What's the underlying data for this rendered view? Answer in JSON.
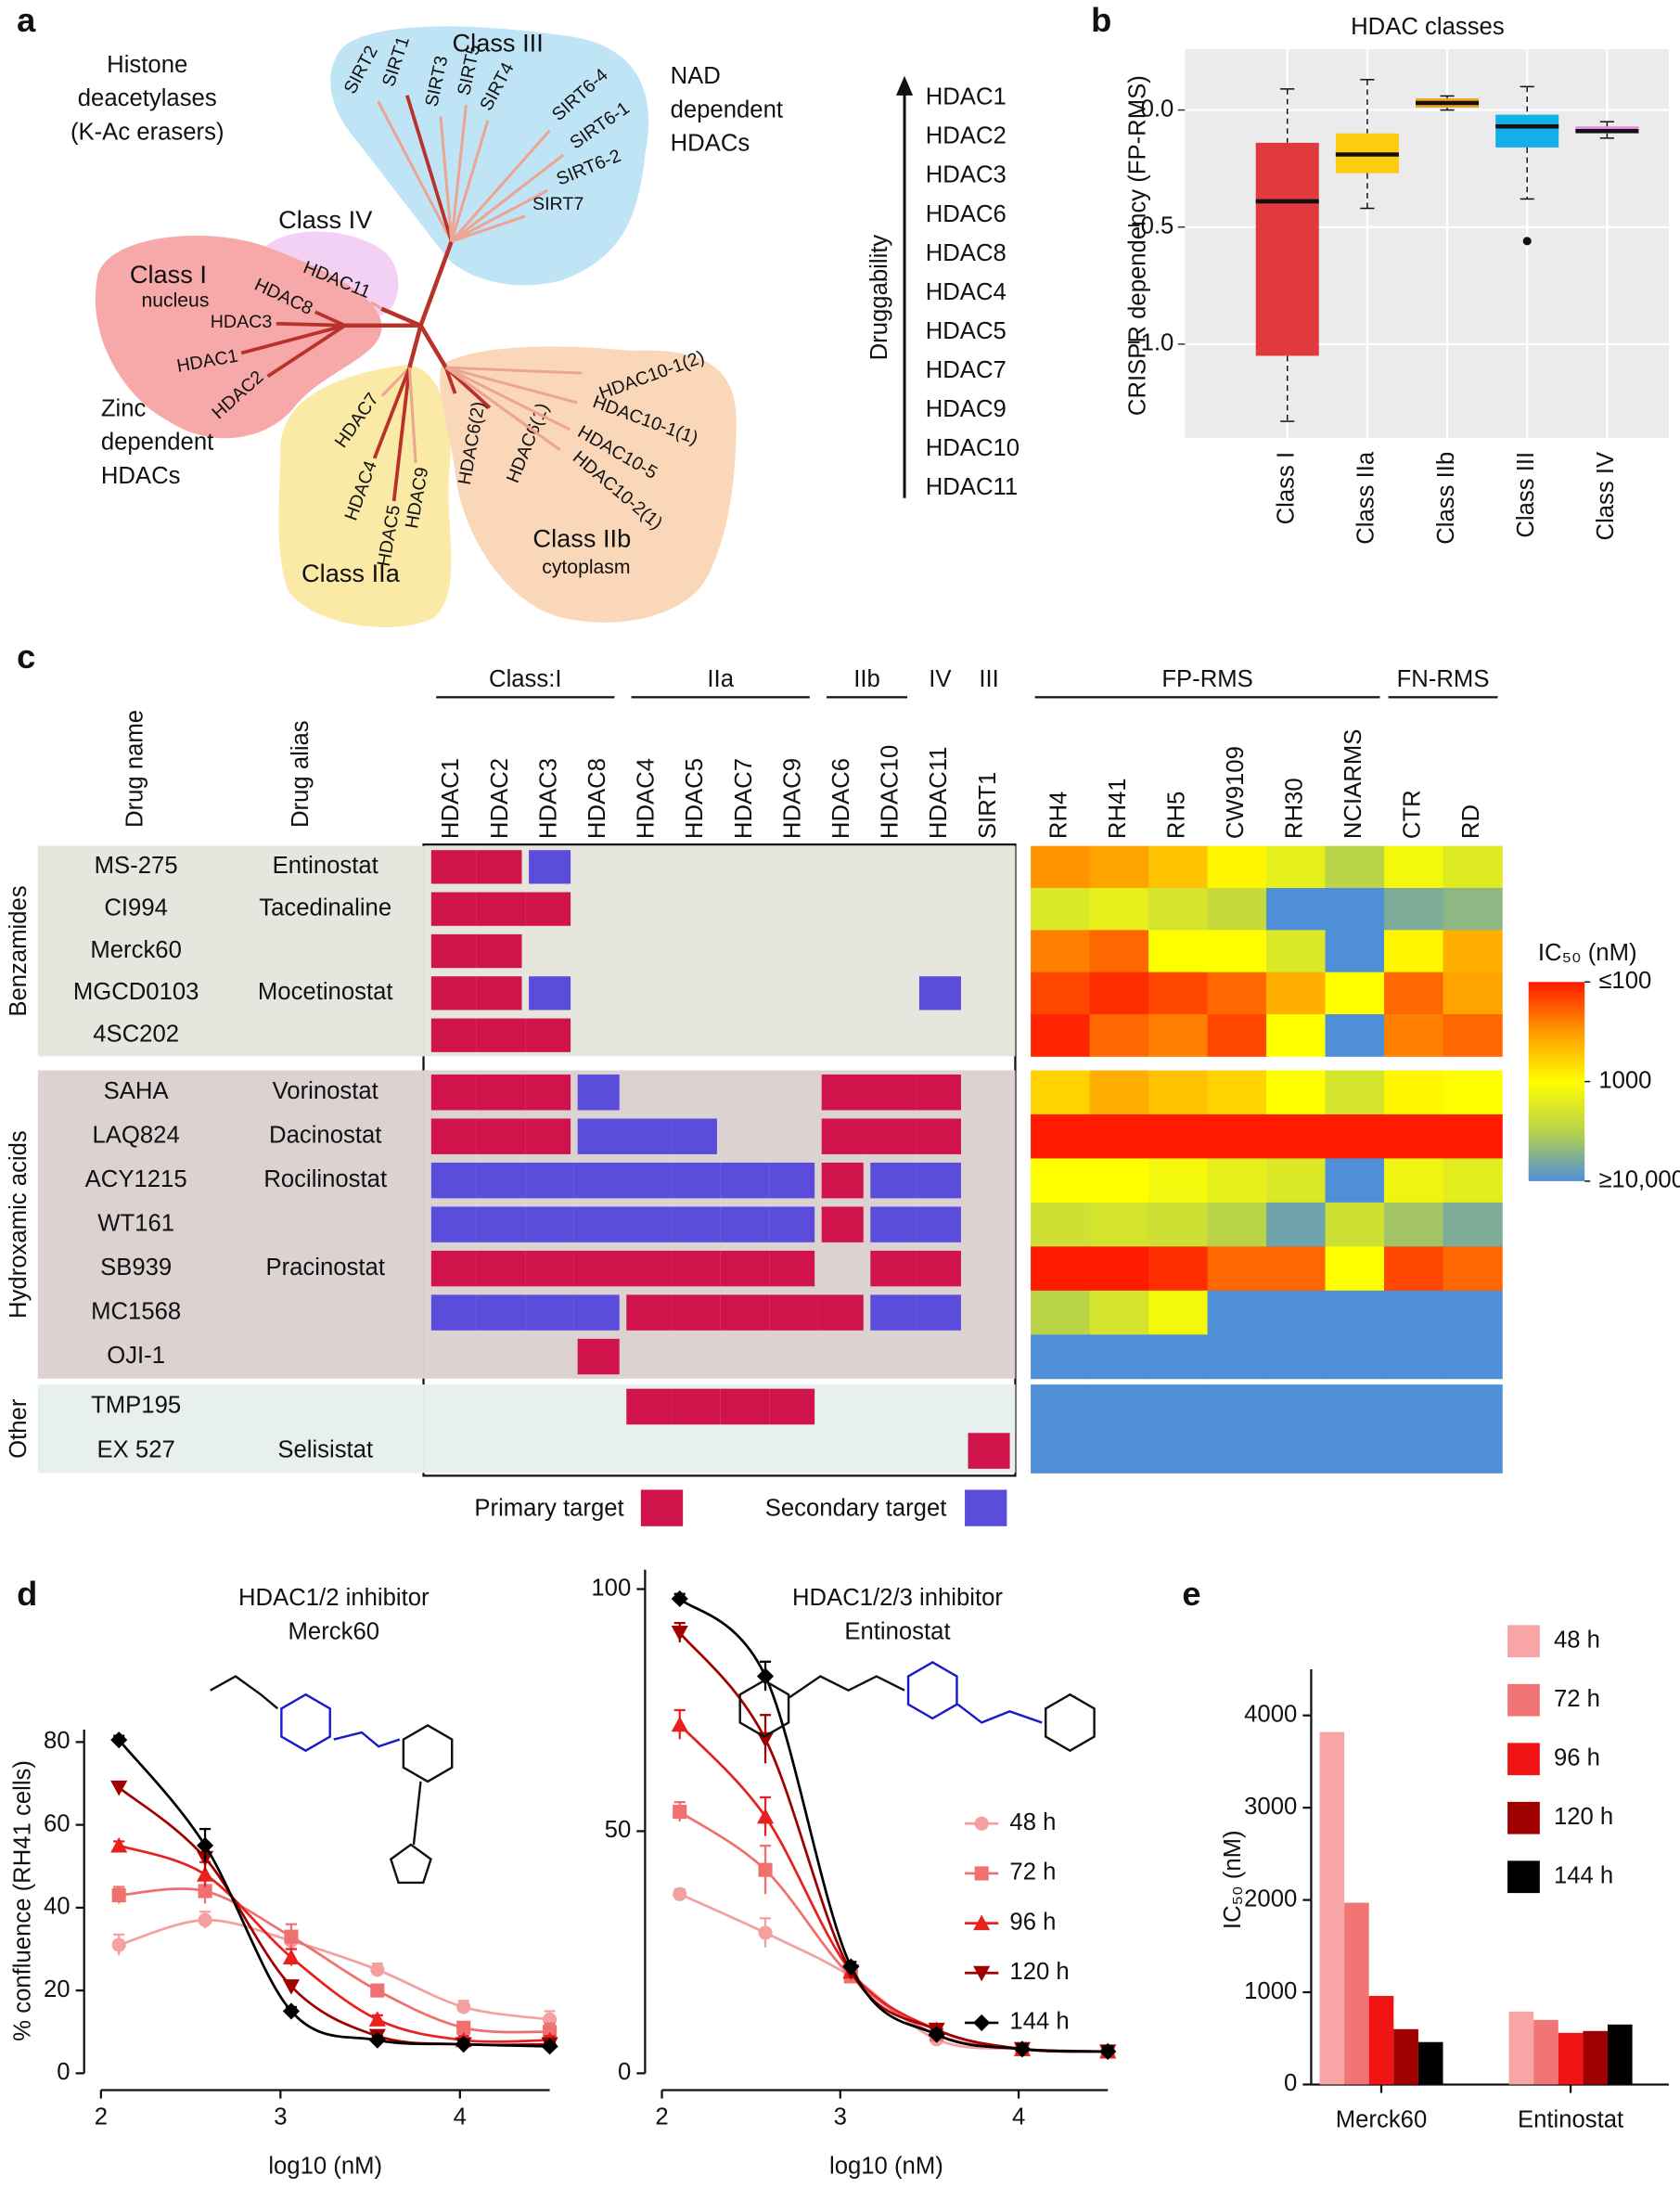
{
  "panel_labels": [
    "a",
    "b",
    "c",
    "d",
    "e"
  ],
  "tree": {
    "family_title": [
      "Histone",
      "deacetylases",
      "(K-Ac erasers)"
    ],
    "zinc_label": [
      "Zinc",
      "dependent",
      "HDACs"
    ],
    "nad_label": [
      "NAD",
      "dependent",
      "HDACs"
    ],
    "classes": [
      {
        "name": "Class III",
        "leaves": [
          "SIRT2",
          "SIRT1",
          "SIRT3",
          "SIRT5",
          "SIRT4",
          "SIRT6-4",
          "SIRT6-1",
          "SIRT6-2",
          "SIRT7"
        ]
      },
      {
        "name": "Class IV",
        "leaves": [
          "HDAC11"
        ]
      },
      {
        "name": "Class I",
        "sub": "nucleus",
        "leaves": [
          "HDAC8",
          "HDAC3",
          "HDAC1",
          "HDAC2"
        ]
      },
      {
        "name": "Class IIa",
        "leaves": [
          "HDAC7",
          "HDAC4",
          "HDAC5",
          "HDAC9"
        ]
      },
      {
        "name": "Class IIb",
        "sub": "cytoplasm",
        "leaves": [
          "HDAC6(2)",
          "HDAC6(1)",
          "HDAC10-1(2)",
          "HDAC10-1(1)",
          "HDAC10-5",
          "HDAC10-2(1)"
        ]
      }
    ]
  },
  "druggability": {
    "axis_label": "Druggability",
    "ranking": [
      "HDAC1",
      "HDAC2",
      "HDAC3",
      "HDAC6",
      "HDAC8",
      "HDAC4",
      "HDAC5",
      "HDAC7",
      "HDAC9",
      "HDAC10",
      "HDAC11"
    ]
  },
  "chart_data": [
    {
      "type": "box",
      "title": "HDAC classes",
      "ylabel": "CRISPR dependency (FP-RMS)",
      "categories": [
        "Class I",
        "Class IIa",
        "Class IIb",
        "Class III",
        "Class IV"
      ],
      "colors": [
        "#e0393e",
        "#fdcb0f",
        "#f5a31a",
        "#14aee8",
        "#e38be3"
      ],
      "boxes": [
        {
          "whislo": -1.33,
          "q1": -1.05,
          "med": -0.39,
          "q3": -0.14,
          "whishi": 0.09
        },
        {
          "whislo": -0.42,
          "q1": -0.27,
          "med": -0.19,
          "q3": -0.1,
          "whishi": 0.13
        },
        {
          "whislo": 0.0,
          "q1": 0.01,
          "med": 0.03,
          "q3": 0.05,
          "whishi": 0.06
        },
        {
          "whislo": -0.38,
          "q1": -0.16,
          "med": -0.07,
          "q3": -0.02,
          "whishi": 0.1,
          "fliers": [
            -0.56
          ]
        },
        {
          "whislo": -0.12,
          "q1": -0.1,
          "med": -0.09,
          "q3": -0.07,
          "whishi": -0.05
        }
      ],
      "ylim": [
        -1.4,
        0.26
      ],
      "yticks": [
        {
          "value": -1,
          "label": "−1.0"
        },
        {
          "value": -0.5,
          "label": "−0.5"
        },
        {
          "value": 0,
          "label": "0.0"
        }
      ],
      "grid": true
    },
    {
      "type": "heatmap",
      "drug_name_header": "Drug name",
      "drug_alias_header": "Drug alias",
      "target_classes": [
        {
          "name": "Class:I",
          "columns": [
            "HDAC1",
            "HDAC2",
            "HDAC3",
            "HDAC8"
          ]
        },
        {
          "name": "IIa",
          "columns": [
            "HDAC4",
            "HDAC5",
            "HDAC7",
            "HDAC9"
          ]
        },
        {
          "name": "IIb",
          "columns": [
            "HDAC6",
            "HDAC10"
          ]
        },
        {
          "name": "IV",
          "columns": [
            "HDAC11"
          ]
        },
        {
          "name": "III",
          "columns": [
            "SIRT1"
          ]
        }
      ],
      "cell_lines": [
        {
          "name": "FP-RMS",
          "columns": [
            "RH4",
            "RH41",
            "RH5",
            "CW9109",
            "RH30",
            "NCIARMS"
          ]
        },
        {
          "name": "FN-RMS",
          "columns": [
            "CTR",
            "RD"
          ]
        }
      ],
      "groups": [
        {
          "name": "Benzamides",
          "drugs": [
            {
              "name": "MS-275",
              "alias": "Entinostat",
              "targets": [
                1,
                1,
                2,
                0,
                0,
                0,
                0,
                0,
                0,
                0,
                0,
                0
              ],
              "ic50": [
                300,
                350,
                500,
                900,
                1500,
                3000,
                1200,
                1700
              ]
            },
            {
              "name": "CI994",
              "alias": "Tacedinaline",
              "targets": [
                1,
                1,
                1,
                0,
                0,
                0,
                0,
                0,
                0,
                0,
                0,
                0
              ],
              "ic50": [
                1800,
                1500,
                2000,
                2500,
                10000,
                10000,
                6000,
                5000
              ]
            },
            {
              "name": "Merck60",
              "targets": [
                1,
                1,
                0,
                0,
                0,
                0,
                0,
                0,
                0,
                0,
                0,
                0
              ],
              "ic50": [
                250,
                200,
                1000,
                1000,
                1800,
                10000,
                900,
                400
              ]
            },
            {
              "name": "MGCD0103",
              "alias": "Mocetinostat",
              "targets": [
                1,
                1,
                2,
                0,
                0,
                0,
                0,
                0,
                0,
                0,
                2,
                0
              ],
              "ic50": [
                150,
                120,
                150,
                200,
                400,
                1000,
                200,
                350
              ]
            },
            {
              "name": "4SC202",
              "targets": [
                1,
                1,
                1,
                0,
                0,
                0,
                0,
                0,
                0,
                0,
                0,
                0
              ],
              "ic50": [
                110,
                200,
                250,
                150,
                1000,
                10000,
                250,
                200
              ]
            }
          ]
        },
        {
          "name": "Hydroxamic acids",
          "drugs": [
            {
              "name": "SAHA",
              "alias": "Vorinostat",
              "targets": [
                1,
                1,
                1,
                2,
                0,
                0,
                0,
                0,
                1,
                1,
                1,
                0
              ],
              "ic50": [
                600,
                400,
                500,
                600,
                1000,
                2000,
                900,
                1000
              ]
            },
            {
              "name": "LAQ824",
              "alias": "Dacinostat",
              "targets": [
                1,
                1,
                1,
                2,
                2,
                2,
                0,
                0,
                1,
                1,
                1,
                0
              ],
              "ic50": [
                100,
                100,
                100,
                100,
                100,
                100,
                100,
                100
              ]
            },
            {
              "name": "ACY1215",
              "alias": "Rocilinostat",
              "targets": [
                2,
                2,
                2,
                2,
                2,
                2,
                2,
                2,
                1,
                2,
                2,
                0
              ],
              "ic50": [
                1000,
                1000,
                1200,
                1500,
                1800,
                10000,
                1300,
                1600
              ]
            },
            {
              "name": "WT161",
              "targets": [
                2,
                2,
                2,
                2,
                2,
                2,
                2,
                2,
                1,
                2,
                2,
                0
              ],
              "ic50": [
                2200,
                2000,
                2200,
                3000,
                7000,
                2200,
                4000,
                6000
              ]
            },
            {
              "name": "SB939",
              "alias": "Pracinostat",
              "targets": [
                1,
                1,
                1,
                1,
                1,
                1,
                1,
                1,
                0,
                1,
                1,
                0
              ],
              "ic50": [
                100,
                100,
                120,
                200,
                200,
                1000,
                150,
                200
              ]
            },
            {
              "name": "MC1568",
              "targets": [
                2,
                2,
                2,
                2,
                1,
                1,
                1,
                1,
                1,
                2,
                2,
                0
              ],
              "ic50": [
                3000,
                2000,
                1200,
                10000,
                10000,
                10000,
                10000,
                10000
              ]
            },
            {
              "name": "OJI-1",
              "targets": [
                0,
                0,
                0,
                1,
                0,
                0,
                0,
                0,
                0,
                0,
                0,
                0
              ],
              "ic50": [
                10000,
                10000,
                10000,
                10000,
                10000,
                10000,
                10000,
                10000
              ]
            }
          ]
        },
        {
          "name": "Other",
          "drugs": [
            {
              "name": "TMP195",
              "targets": [
                0,
                0,
                0,
                0,
                1,
                1,
                1,
                1,
                0,
                0,
                0,
                0
              ],
              "ic50": [
                10000,
                10000,
                10000,
                10000,
                10000,
                10000,
                10000,
                10000
              ]
            },
            {
              "name": "EX 527",
              "alias": "Selisistat",
              "targets": [
                0,
                0,
                0,
                0,
                0,
                0,
                0,
                0,
                0,
                0,
                0,
                1
              ],
              "ic50": [
                10000,
                10000,
                10000,
                10000,
                10000,
                10000,
                10000,
                10000
              ]
            }
          ]
        }
      ],
      "target_legend": [
        {
          "name": "Primary target",
          "color": "#d0134a"
        },
        {
          "name": "Secondary target",
          "color": "#5b4ddb"
        }
      ],
      "colorbar": {
        "title": "IC₅₀ (nM)",
        "lim": [
          100,
          10000
        ],
        "log": true,
        "ticks": [
          {
            "value": 100,
            "label": "≤100"
          },
          1000,
          {
            "value": 10000,
            "label": "≥10,000"
          }
        ],
        "colors": [
          "#ff1a00",
          "#ff9a00",
          "#ffff00",
          "#b7d24a",
          "#4f8fd8"
        ]
      }
    },
    {
      "type": "line",
      "title": "HDAC1/2 inhibitor",
      "subtitle": "Merck60",
      "ylabel": "% confluence (RH41 cells)",
      "xlabel": "log10 (nM)",
      "x": [
        2.1,
        2.58,
        3.06,
        3.54,
        4.02,
        4.5
      ],
      "series": [
        {
          "color": "#f4a0a0",
          "marker": "circle",
          "values": [
            31,
            37,
            32,
            25,
            16,
            13
          ],
          "errors": [
            2.5,
            2,
            2,
            1.5,
            1.5,
            2
          ]
        },
        {
          "color": "#f07070",
          "marker": "square",
          "values": [
            43,
            44,
            33,
            20,
            11,
            10
          ],
          "errors": [
            2,
            3,
            3,
            1,
            1,
            2
          ]
        },
        {
          "color": "#e8201e",
          "marker": "triangle",
          "values": [
            55,
            48,
            28,
            13,
            8,
            8
          ],
          "errors": [
            1,
            3,
            2,
            1,
            1,
            1
          ]
        },
        {
          "color": "#a00000",
          "marker": "triangle-down",
          "values": [
            69,
            52,
            21,
            9,
            7,
            7
          ],
          "errors": [
            1,
            3,
            1,
            1,
            1,
            1
          ]
        },
        {
          "color": "#000000",
          "marker": "diamond",
          "values": [
            80.5,
            55,
            15,
            8,
            7,
            6.5
          ],
          "errors": [
            1,
            4,
            1,
            1,
            1,
            1
          ]
        }
      ],
      "xlim": [
        2,
        4.5
      ],
      "xticks": [
        2,
        3,
        4
      ],
      "ylim": [
        0,
        83
      ],
      "yticks": [
        0,
        20,
        40,
        60,
        80
      ],
      "legend": false
    },
    {
      "type": "line",
      "title": "HDAC1/2/3 inhibitor",
      "subtitle": "Entinostat",
      "xlabel": "log10 (nM)",
      "x": [
        2.1,
        2.58,
        3.06,
        3.54,
        4.02,
        4.5
      ],
      "series": [
        {
          "name": "48 h",
          "color": "#f4a0a0",
          "marker": "circle",
          "values": [
            37,
            29,
            20,
            7,
            5,
            4.5
          ],
          "errors": [
            1,
            3,
            1,
            1,
            1,
            1
          ]
        },
        {
          "name": "72 h",
          "color": "#f07070",
          "marker": "square",
          "values": [
            54,
            42,
            20,
            8,
            5,
            4.5
          ],
          "errors": [
            2,
            5,
            1,
            1,
            1,
            1
          ]
        },
        {
          "name": "96 h",
          "color": "#e8201e",
          "marker": "triangle",
          "values": [
            72,
            53,
            21,
            9,
            5,
            4.5
          ],
          "errors": [
            3,
            4,
            1,
            1,
            1,
            1
          ]
        },
        {
          "name": "120 h",
          "color": "#a00000",
          "marker": "triangle-down",
          "values": [
            91,
            69,
            21,
            9,
            5,
            4.5
          ],
          "errors": [
            2,
            5,
            1,
            1,
            1,
            1
          ]
        },
        {
          "name": "144 h",
          "color": "#000000",
          "marker": "diamond",
          "values": [
            98,
            82,
            22,
            8,
            5,
            4.5
          ],
          "errors": [
            1,
            3,
            1,
            1,
            1,
            1
          ]
        }
      ],
      "xlim": [
        2,
        4.5
      ],
      "xticks": [
        2,
        3,
        4
      ],
      "ylim": [
        0,
        104
      ],
      "yticks": [
        0,
        50,
        100
      ],
      "legend": true
    },
    {
      "type": "bar",
      "ylabel": "IC₅₀ (nM)",
      "categories": [
        "Merck60",
        "Entinostat"
      ],
      "series": [
        {
          "name": "48 h",
          "color": "#f7a5a5",
          "values": [
            3820,
            790
          ]
        },
        {
          "name": "72 h",
          "color": "#f27575",
          "values": [
            1970,
            700
          ]
        },
        {
          "name": "96 h",
          "color": "#f01414",
          "values": [
            960,
            560
          ]
        },
        {
          "name": "120 h",
          "color": "#a10000",
          "values": [
            600,
            580
          ]
        },
        {
          "name": "144 h",
          "color": "#000000",
          "values": [
            460,
            650
          ]
        }
      ],
      "ylim": [
        0,
        4500
      ],
      "yticks": [
        0,
        1000,
        2000,
        3000,
        4000
      ],
      "legend": true
    }
  ]
}
